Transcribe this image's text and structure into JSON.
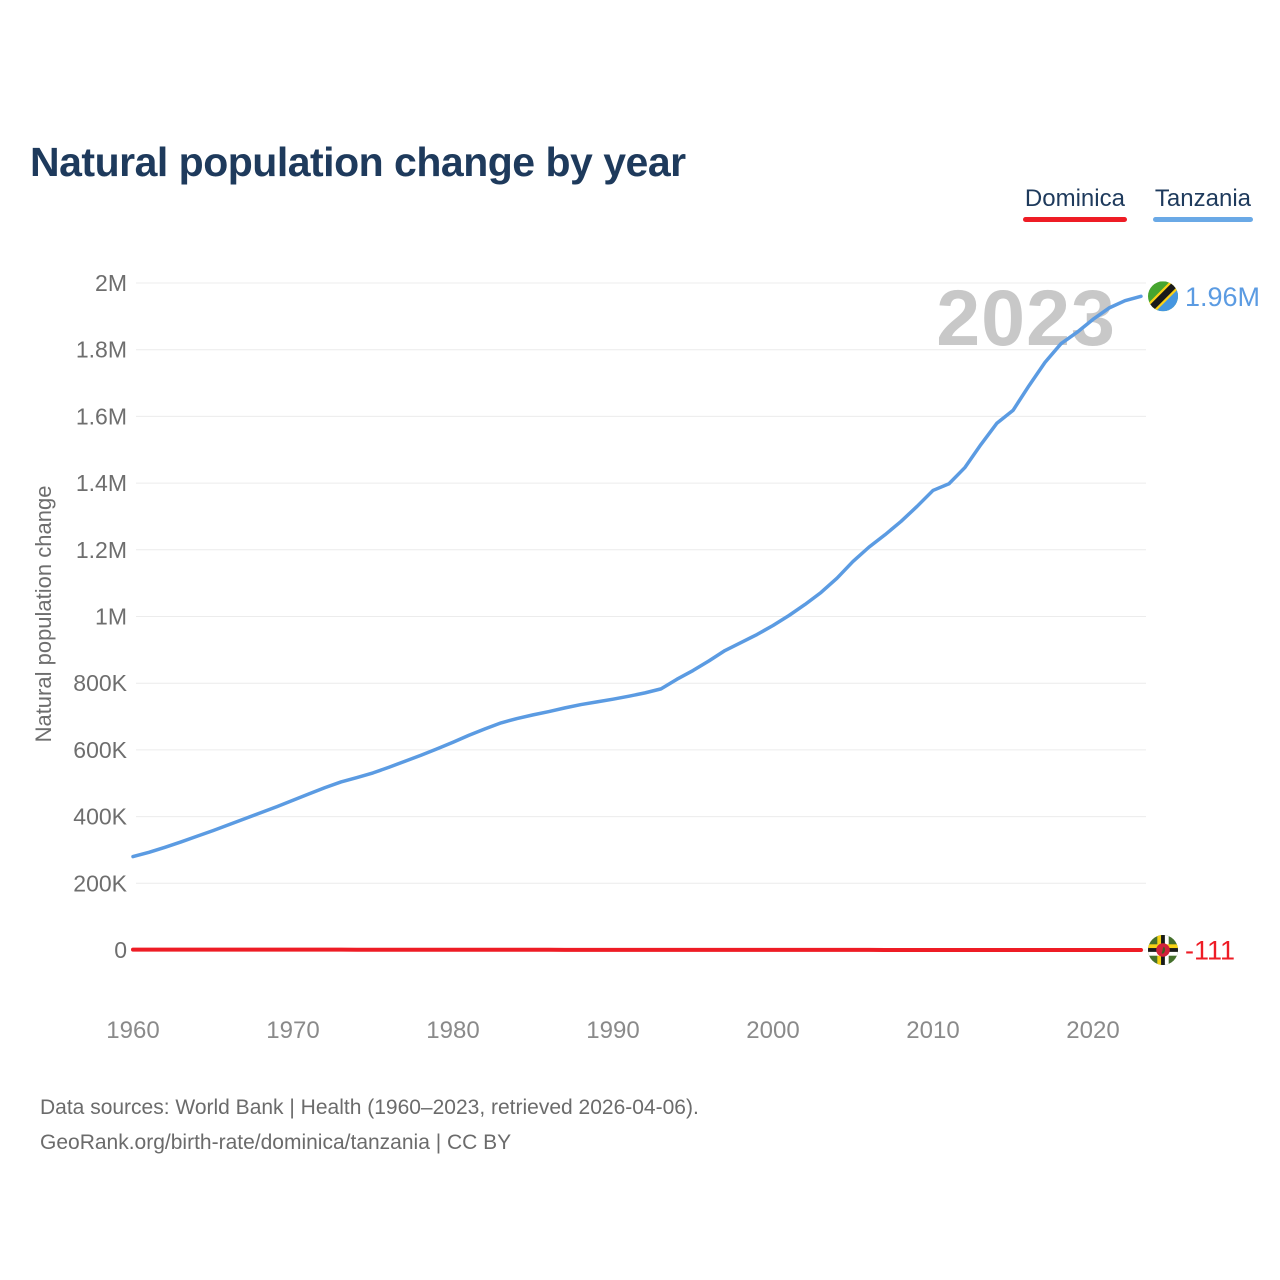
{
  "header": {
    "title": "Natural population change by year"
  },
  "legend": {
    "items": [
      {
        "label": "Dominica",
        "color": "#ee1c25"
      },
      {
        "label": "Tanzania",
        "color": "#6aa9e6"
      }
    ]
  },
  "colors": {
    "title_navy": "#1e3a5c",
    "grid": "#ececec",
    "y_tick_text": "#6e6e6e",
    "x_tick_text": "#8a8a8a",
    "watermark": "#c8c8c8",
    "dominica_red": "#ee1c25",
    "tanzania_blue": "#5b9be2"
  },
  "chart_data": {
    "type": "line",
    "title": "Natural population change by year",
    "xlabel": "",
    "ylabel": "Natural population change",
    "watermark": "2023",
    "ylim": [
      -20000,
      2000000
    ],
    "xlim": [
      1960,
      2023
    ],
    "grid": true,
    "legend_position": "top-right",
    "x_ticks": [
      1960,
      1970,
      1980,
      1990,
      2000,
      2010,
      2020
    ],
    "y_ticks": [
      {
        "value": 0,
        "label": "0"
      },
      {
        "value": 200000,
        "label": "200K"
      },
      {
        "value": 400000,
        "label": "400K"
      },
      {
        "value": 600000,
        "label": "600K"
      },
      {
        "value": 800000,
        "label": "800K"
      },
      {
        "value": 1000000,
        "label": "1M"
      },
      {
        "value": 1200000,
        "label": "1.2M"
      },
      {
        "value": 1400000,
        "label": "1.4M"
      },
      {
        "value": 1600000,
        "label": "1.6M"
      },
      {
        "value": 1800000,
        "label": "1.8M"
      },
      {
        "value": 2000000,
        "label": "2M"
      }
    ],
    "x": [
      1960,
      1961,
      1962,
      1963,
      1964,
      1965,
      1966,
      1967,
      1968,
      1969,
      1970,
      1971,
      1972,
      1973,
      1974,
      1975,
      1976,
      1977,
      1978,
      1979,
      1980,
      1981,
      1982,
      1983,
      1984,
      1985,
      1986,
      1987,
      1988,
      1989,
      1990,
      1991,
      1992,
      1993,
      1994,
      1995,
      1996,
      1997,
      1998,
      1999,
      2000,
      2001,
      2002,
      2003,
      2004,
      2005,
      2006,
      2007,
      2008,
      2009,
      2010,
      2011,
      2012,
      2013,
      2014,
      2015,
      2016,
      2017,
      2018,
      2019,
      2020,
      2021,
      2022,
      2023
    ],
    "series": [
      {
        "name": "Tanzania",
        "color": "#5b9be2",
        "marker_icon": "tanzania-flag",
        "end_label": "1.96M",
        "values": [
          280000,
          293000,
          308000,
          324000,
          341000,
          358000,
          376000,
          394000,
          412000,
          430000,
          449000,
          468000,
          487000,
          504000,
          517000,
          531000,
          548000,
          566000,
          584000,
          603000,
          623000,
          644000,
          663000,
          681000,
          694000,
          705000,
          715000,
          726000,
          736000,
          744000,
          752000,
          761000,
          771000,
          783000,
          812000,
          838000,
          867000,
          898000,
          922000,
          946000,
          973000,
          1003000,
          1036000,
          1072000,
          1115000,
          1165000,
          1208000,
          1245000,
          1285000,
          1330000,
          1378000,
          1398000,
          1447000,
          1516000,
          1580000,
          1618000,
          1692000,
          1762000,
          1818000,
          1852000,
          1891000,
          1925000,
          1947000,
          1960000
        ]
      },
      {
        "name": "Dominica",
        "color": "#ee1c25",
        "marker_icon": "dominica-flag",
        "end_label": "-111",
        "values": [
          1250,
          1240,
          1225,
          1210,
          1190,
          1170,
          1150,
          1130,
          1100,
          1070,
          1040,
          1010,
          980,
          950,
          920,
          890,
          860,
          830,
          800,
          770,
          740,
          710,
          680,
          650,
          620,
          595,
          570,
          545,
          520,
          500,
          480,
          460,
          440,
          420,
          400,
          380,
          360,
          340,
          320,
          300,
          285,
          270,
          255,
          240,
          225,
          210,
          195,
          180,
          165,
          150,
          135,
          120,
          105,
          90,
          75,
          60,
          40,
          20,
          0,
          -20,
          -45,
          -70,
          -90,
          -111
        ]
      }
    ]
  },
  "footer": {
    "line1": "Data sources: World Bank | Health (1960–2023, retrieved 2026-04-06).",
    "line2": "GeoRank.org/birth-rate/dominica/tanzania | CC BY"
  }
}
